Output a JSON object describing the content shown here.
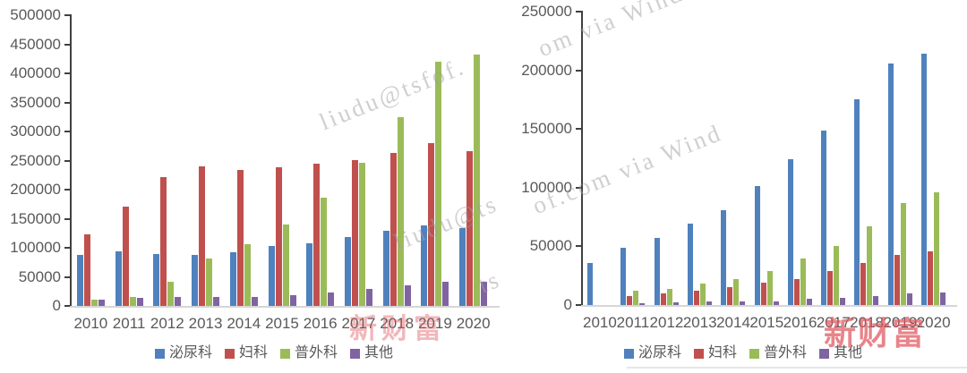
{
  "watermarks": {
    "wm1": "liudu@tsfof.",
    "wm2": "om via Wind",
    "wm3": "liudu@ts",
    "wm4": "of.com via Wind",
    "wm5": "ts",
    "brand_left": "新财富",
    "brand_right": "新财富"
  },
  "chart_data": [
    {
      "type": "bar",
      "categories": [
        "2010",
        "2011",
        "2012",
        "2013",
        "2014",
        "2015",
        "2016",
        "2017",
        "2018",
        "2019",
        "2020"
      ],
      "series": [
        {
          "name": "泌尿科",
          "color": "#4F81BD",
          "values": [
            87000,
            94000,
            89000,
            87000,
            92000,
            103000,
            108000,
            118000,
            129000,
            138000,
            134000
          ]
        },
        {
          "name": "妇科",
          "color": "#C0504D",
          "values": [
            123000,
            170000,
            222000,
            240000,
            234000,
            238000,
            245000,
            250000,
            263000,
            280000,
            266000
          ]
        },
        {
          "name": "普外科",
          "color": "#9BBB59",
          "values": [
            10000,
            15000,
            42000,
            81000,
            106000,
            140000,
            186000,
            246000,
            324000,
            420000,
            433000
          ]
        },
        {
          "name": "其他",
          "color": "#8064A2",
          "values": [
            10000,
            14000,
            16000,
            16000,
            16000,
            19000,
            23000,
            29000,
            36000,
            41000,
            42000
          ]
        }
      ],
      "ylim": [
        0,
        500000
      ],
      "ytick_step": 50000,
      "yticks": [
        "0",
        "50000",
        "100000",
        "150000",
        "200000",
        "250000",
        "300000",
        "350000",
        "400000",
        "450000",
        "500000"
      ],
      "legend_position": "bottom",
      "grid": false
    },
    {
      "type": "bar",
      "categories": [
        "2010",
        "2011",
        "2012",
        "2013",
        "2014",
        "2015",
        "2016",
        "2017",
        "2018",
        "2019",
        "2020"
      ],
      "series": [
        {
          "name": "泌尿科",
          "color": "#4F81BD",
          "values": [
            36000,
            49000,
            57000,
            69000,
            81000,
            101000,
            124000,
            149000,
            175000,
            206000,
            214000
          ]
        },
        {
          "name": "妇科",
          "color": "#C0504D",
          "values": [
            0,
            8000,
            10000,
            12000,
            15000,
            19000,
            22000,
            29000,
            36000,
            43000,
            46000
          ]
        },
        {
          "name": "普外科",
          "color": "#9BBB59",
          "values": [
            0,
            12000,
            14000,
            18000,
            22000,
            29000,
            40000,
            50000,
            67000,
            87000,
            96000
          ]
        },
        {
          "name": "其他",
          "color": "#8064A2",
          "values": [
            0,
            1500,
            2500,
            3000,
            3000,
            3000,
            5000,
            6000,
            8000,
            10000,
            11000
          ]
        }
      ],
      "ylim": [
        0,
        250000
      ],
      "ytick_step": 50000,
      "yticks": [
        "0",
        "50000",
        "100000",
        "150000",
        "200000",
        "250000"
      ],
      "legend_position": "bottom",
      "grid": false
    }
  ]
}
